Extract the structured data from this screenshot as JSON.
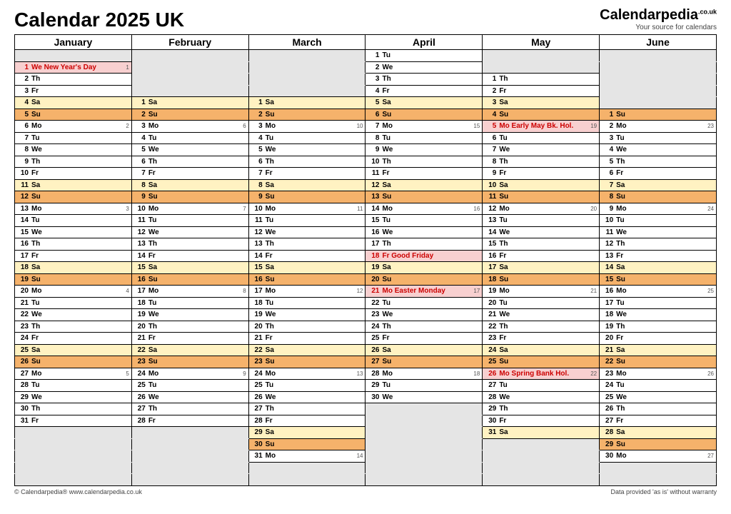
{
  "title": "Calendar 2025 UK",
  "brand": {
    "name": "Calendar",
    "pedia": "pedia",
    "suffix": ".co.uk",
    "tag": "Your source for calendars"
  },
  "footer": {
    "left": "© Calendarpedia®   www.calendarpedia.co.uk",
    "right": "Data provided 'as is' without warranty"
  },
  "colors": {
    "empty": "#e5e5e5",
    "sat": "#fff2c2",
    "sun": "#f5b26b",
    "holiday_bg": "#f8d0d0",
    "holiday_fg": "#cc0000",
    "weekday": "#ffffff",
    "border": "#000000"
  },
  "months": [
    "January",
    "February",
    "March",
    "April",
    "May",
    "June"
  ],
  "rows": 37,
  "start_dow": [
    3,
    6,
    6,
    2,
    4,
    0
  ],
  "days_in_month": [
    31,
    28,
    31,
    30,
    31,
    30
  ],
  "dow_labels": [
    "Su",
    "Mo",
    "Tu",
    "We",
    "Th",
    "Fr",
    "Sa"
  ],
  "holidays": {
    "0": {
      "1": "We New Year's Day"
    },
    "3": {
      "18": "Fr   Good Friday",
      "21": "Mo Easter Monday"
    },
    "4": {
      "5": "Mo Early May Bk. Hol.",
      "26": "Mo Spring Bank Hol."
    }
  },
  "week_numbers": {
    "0": {
      "1": "1",
      "6": "2",
      "13": "3",
      "20": "4",
      "27": "5"
    },
    "1": {
      "3": "6",
      "10": "7",
      "17": "8",
      "24": "9"
    },
    "2": {
      "3": "10",
      "10": "11",
      "17": "12",
      "24": "13",
      "31": "14"
    },
    "3": {
      "7": "15",
      "14": "16",
      "21": "17",
      "28": "18"
    },
    "4": {
      "5": "19",
      "12": "20",
      "19": "21",
      "26": "22"
    },
    "5": {
      "2": "23",
      "9": "24",
      "16": "25",
      "23": "26",
      "30": "27"
    }
  }
}
